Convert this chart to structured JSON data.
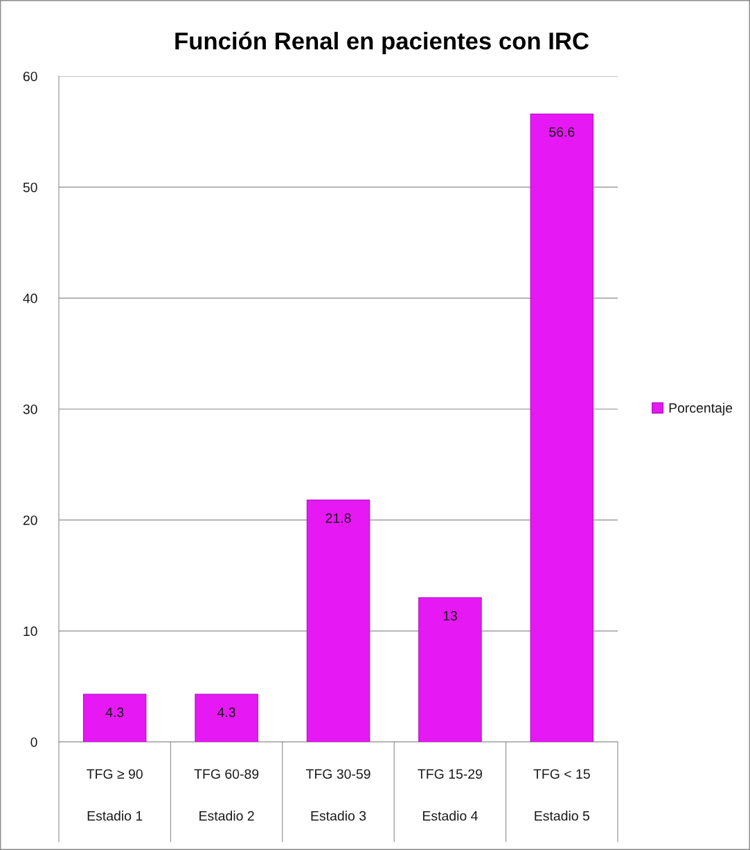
{
  "chart_data": {
    "type": "bar",
    "title": "Función Renal en pacientes con IRC",
    "categories": [
      "TFG ≥ 90\nEstadio 1",
      "TFG 60-89\nEstadio 2",
      "TFG 30-59\nEstadio 3",
      "TFG 15-29\nEstadio 4",
      "TFG < 15\nEstadio 5"
    ],
    "series": [
      {
        "name": "Porcentaje",
        "color": "#e619f5",
        "values": [
          4.3,
          4.3,
          21.8,
          13,
          56.6
        ]
      }
    ],
    "ylim": [
      0,
      60
    ],
    "yticks": [
      0,
      10,
      20,
      30,
      40,
      50,
      60
    ],
    "grid": "y",
    "legend": "right",
    "data_labels": true
  }
}
